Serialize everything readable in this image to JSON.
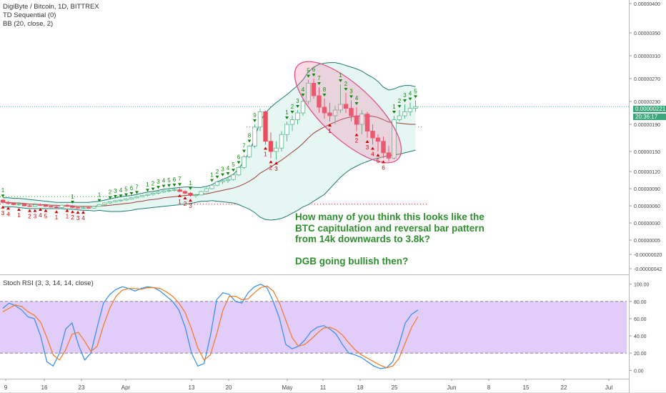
{
  "legend": {
    "symbol": "DigiByte / Bitcoin, 1D, BITTREX",
    "td": "TD Sequential (0)",
    "bb": "BB (20, close, 2)",
    "stoch": "Stoch RSI (3, 3, 14, 14, close)"
  },
  "annotation": {
    "line1": "How many of you think this looks like the",
    "line2": "BTC capitulation and reversal bar pattern",
    "line3": "from 14k downwards to 3.8k?",
    "line4": "DGB going bullish then?"
  },
  "price_tag": {
    "price": "0.00000221",
    "countdown": "20:36:17"
  },
  "colors": {
    "up": "#53b987",
    "down": "#eb4d5c",
    "td_up": "#0a8a0a",
    "td_down": "#d40000",
    "bb": "#1f7a6e",
    "basis": "#9b3b3b",
    "k": "#2f8ef0",
    "d": "#f4771f",
    "rsi_band": "#e2ccf9",
    "annotation": "#2f8f2f",
    "ellipse": "#e0508a"
  },
  "chart_data": [
    {
      "type": "candlestick",
      "title": "DigiByte / Bitcoin, 1D, BITTREX",
      "y_ticks": [
        "0.00000400",
        "0.00000350",
        "0.00000310",
        "0.00000270",
        "0.00000230",
        "0.00000190",
        "0.00000150",
        "0.00000120",
        "0.00000090",
        "0.00000060",
        "0.00000030",
        "0.00000005",
        "-0.00000020",
        "-0.00000042"
      ],
      "x_ticks": [
        "9",
        "16",
        "23",
        "Apr",
        "13",
        "20",
        "May",
        "11",
        "18",
        "25",
        "Jun",
        "8",
        "15",
        "22",
        "Jul"
      ],
      "ohlc": [
        [
          7e-07,
          7.1e-07,
          6.4e-07,
          6.6e-07
        ],
        [
          6.6e-07,
          6.8e-07,
          6.2e-07,
          6.4e-07
        ],
        [
          6.4e-07,
          6.6e-07,
          6.1e-07,
          6.2e-07
        ],
        [
          6.2e-07,
          6.5e-07,
          6e-07,
          6.3e-07
        ],
        [
          6.3e-07,
          6.4e-07,
          5.9e-07,
          6e-07
        ],
        [
          6e-07,
          6.2e-07,
          5.8e-07,
          5.9e-07
        ],
        [
          5.9e-07,
          6.3e-07,
          5.8e-07,
          6.2e-07
        ],
        [
          6.2e-07,
          6.4e-07,
          6e-07,
          6.1e-07
        ],
        [
          6.1e-07,
          6.2e-07,
          5.8e-07,
          5.9e-07
        ],
        [
          5.9e-07,
          6e-07,
          5.7e-07,
          5.8e-07
        ],
        [
          5.8e-07,
          6e-07,
          5.6e-07,
          5.7e-07
        ],
        [
          5.7e-07,
          6.2e-07,
          5.6e-07,
          6.1e-07
        ],
        [
          6.1e-07,
          6.3e-07,
          5.8e-07,
          5.9e-07
        ],
        [
          5.9e-07,
          6e-07,
          5.6e-07,
          5.7e-07
        ],
        [
          5.7e-07,
          5.8e-07,
          5.5e-07,
          5.6e-07
        ],
        [
          5.6e-07,
          5.8e-07,
          5.5e-07,
          5.7e-07
        ],
        [
          5.7e-07,
          5.9e-07,
          5.5e-07,
          5.6e-07
        ],
        [
          5.6e-07,
          6e-07,
          5.5e-07,
          5.9e-07
        ],
        [
          5.9e-07,
          6.3e-07,
          5.8e-07,
          6.2e-07
        ],
        [
          6.2e-07,
          6.6e-07,
          6.1e-07,
          6.5e-07
        ],
        [
          6.5e-07,
          6.8e-07,
          6.3e-07,
          6.7e-07
        ],
        [
          6.7e-07,
          7e-07,
          6.6e-07,
          6.9e-07
        ],
        [
          6.9e-07,
          7.1e-07,
          6.7e-07,
          7e-07
        ],
        [
          7e-07,
          7.3e-07,
          6.9e-07,
          7.2e-07
        ],
        [
          7.2e-07,
          7.5e-07,
          7.1e-07,
          7.4e-07
        ],
        [
          7.4e-07,
          7.7e-07,
          7.3e-07,
          7.6e-07
        ],
        [
          7.6e-07,
          7.9e-07,
          7.5e-07,
          7.8e-07
        ],
        [
          7.8e-07,
          8.1e-07,
          7.6e-07,
          8e-07
        ],
        [
          8e-07,
          8.3e-07,
          7.8e-07,
          8.2e-07
        ],
        [
          8.2e-07,
          8.6e-07,
          8e-07,
          8.4e-07
        ],
        [
          8.4e-07,
          8.8e-07,
          8.2e-07,
          8.6e-07
        ],
        [
          8.6e-07,
          8.9e-07,
          8.4e-07,
          8.7e-07
        ],
        [
          8.7e-07,
          9e-07,
          8.5e-07,
          8.8e-07
        ],
        [
          8.8e-07,
          9.1e-07,
          8.4e-07,
          8.5e-07
        ],
        [
          8.5e-07,
          8.7e-07,
          8e-07,
          8.2e-07
        ],
        [
          8.2e-07,
          8.4e-07,
          7.6e-07,
          7.8e-07
        ],
        [
          7.8e-07,
          8.1e-07,
          7.4e-07,
          7.9e-07
        ],
        [
          7.9e-07,
          8.6e-07,
          7.8e-07,
          8.5e-07
        ],
        [
          8.5e-07,
          9.2e-07,
          8.4e-07,
          9e-07
        ],
        [
          9e-07,
          9.8e-07,
          8.9e-07,
          9.6e-07
        ],
        [
          9.6e-07,
          1.04e-06,
          9.4e-07,
          1.02e-06
        ],
        [
          1.02e-06,
          1.08e-06,
          9.8e-07,
          1.04e-06
        ],
        [
          1.04e-06,
          1.1e-06,
          1e-06,
          1.06e-06
        ],
        [
          1.06e-06,
          1.16e-06,
          1.04e-06,
          1.14e-06
        ],
        [
          1.14e-06,
          1.28e-06,
          1.12e-06,
          1.26e-06
        ],
        [
          1.26e-06,
          1.45e-06,
          1.24e-06,
          1.42e-06
        ],
        [
          1.42e-06,
          1.6e-06,
          1.4e-06,
          1.58e-06
        ],
        [
          1.58e-06,
          1.9e-06,
          1.55e-06,
          1.86e-06
        ],
        [
          1.86e-06,
          2.18e-06,
          1.8e-06,
          2.12e-06
        ],
        [
          2.12e-06,
          2.14e-06,
          1.6e-06,
          1.65e-06
        ],
        [
          1.65e-06,
          1.78e-06,
          1.4e-06,
          1.5e-06
        ],
        [
          1.5e-06,
          1.65e-06,
          1.38e-06,
          1.55e-06
        ],
        [
          1.55e-06,
          1.8e-06,
          1.5e-06,
          1.75e-06
        ],
        [
          1.75e-06,
          1.95e-06,
          1.65e-06,
          1.9e-06
        ],
        [
          1.9e-06,
          2.05e-06,
          1.8e-06,
          1.98e-06
        ],
        [
          1.98e-06,
          2.15e-06,
          1.9e-06,
          2.1e-06
        ],
        [
          2.1e-06,
          2.35e-06,
          2.05e-06,
          2.3e-06
        ],
        [
          2.3e-06,
          2.68e-06,
          2.25e-06,
          2.62e-06
        ],
        [
          2.62e-06,
          2.7e-06,
          2.35e-06,
          2.4e-06
        ],
        [
          2.4e-06,
          2.55e-06,
          2.1e-06,
          2.2e-06
        ],
        [
          2.2e-06,
          2.35e-06,
          2e-06,
          2.1e-06
        ],
        [
          2.1e-06,
          2.28e-06,
          1.95e-06,
          2.05e-06
        ],
        [
          2.05e-06,
          2.22e-06,
          1.9e-06,
          2.15e-06
        ],
        [
          2.15e-06,
          2.6e-06,
          2.1e-06,
          2.25e-06
        ],
        [
          2.25e-06,
          2.45e-06,
          2.1e-06,
          2.18e-06
        ],
        [
          2.18e-06,
          2.32e-06,
          1.95e-06,
          2.05e-06
        ],
        [
          2.05e-06,
          2.2e-06,
          1.8e-06,
          1.9e-06
        ],
        [
          1.9e-06,
          2.15e-06,
          1.75e-06,
          2.08e-06
        ],
        [
          2.08e-06,
          2.12e-06,
          1.7e-06,
          1.8e-06
        ],
        [
          1.8e-06,
          1.9e-06,
          1.6e-06,
          1.7e-06
        ],
        [
          1.7e-06,
          1.75e-06,
          1.5e-06,
          1.65e-06
        ],
        [
          1.65e-06,
          1.72e-06,
          1.4e-06,
          1.48e-06
        ],
        [
          1.48e-06,
          1.58e-06,
          1.35e-06,
          1.4e-06
        ],
        [
          1.4e-06,
          2.05e-06,
          1.38e-06,
          1.98e-06
        ],
        [
          1.98e-06,
          2.15e-06,
          1.95e-06,
          2.05e-06
        ],
        [
          2.05e-06,
          2.25e-06,
          2e-06,
          2.12e-06
        ],
        [
          2.12e-06,
          2.28e-06,
          2.05e-06,
          2.18e-06
        ],
        [
          2.18e-06,
          2.32e-06,
          2.12e-06,
          2.21e-06
        ]
      ],
      "td_up_counts": [
        {
          "i": 0,
          "n": "1"
        },
        {
          "i": 13,
          "n": "1"
        },
        {
          "i": 18,
          "n": "1"
        },
        {
          "i": 20,
          "n": "2"
        },
        {
          "i": 21,
          "n": "3"
        },
        {
          "i": 22,
          "n": "4"
        },
        {
          "i": 23,
          "n": "5"
        },
        {
          "i": 24,
          "n": "6"
        },
        {
          "i": 25,
          "n": "7"
        },
        {
          "i": 27,
          "n": "1"
        },
        {
          "i": 28,
          "n": "2"
        },
        {
          "i": 29,
          "n": "3"
        },
        {
          "i": 30,
          "n": "4"
        },
        {
          "i": 31,
          "n": "5"
        },
        {
          "i": 32,
          "n": "6"
        },
        {
          "i": 33,
          "n": "7"
        },
        {
          "i": 35,
          "n": "1"
        },
        {
          "i": 39,
          "n": "1"
        },
        {
          "i": 40,
          "n": "2"
        },
        {
          "i": 41,
          "n": "3"
        },
        {
          "i": 42,
          "n": "4"
        },
        {
          "i": 43,
          "n": "5"
        },
        {
          "i": 44,
          "n": "6"
        },
        {
          "i": 45,
          "n": "7"
        },
        {
          "i": 46,
          "n": "8"
        },
        {
          "i": 47,
          "n": "9"
        },
        {
          "i": 53,
          "n": "1"
        },
        {
          "i": 54,
          "n": "2"
        },
        {
          "i": 55,
          "n": "3"
        },
        {
          "i": 56,
          "n": "4"
        },
        {
          "i": 57,
          "n": "5"
        },
        {
          "i": 58,
          "n": "6"
        },
        {
          "i": 59,
          "n": "7"
        },
        {
          "i": 60,
          "n": "8"
        },
        {
          "i": 63,
          "n": "1"
        },
        {
          "i": 64,
          "n": "2"
        },
        {
          "i": 65,
          "n": "3"
        },
        {
          "i": 66,
          "n": "4"
        },
        {
          "i": 73,
          "n": "1"
        },
        {
          "i": 74,
          "n": "2"
        },
        {
          "i": 75,
          "n": "3"
        },
        {
          "i": 76,
          "n": "4"
        },
        {
          "i": 77,
          "n": "5"
        }
      ],
      "td_down_counts": [
        {
          "i": 0,
          "n": "3"
        },
        {
          "i": 1,
          "n": "4"
        },
        {
          "i": 3,
          "n": "1"
        },
        {
          "i": 5,
          "n": "2"
        },
        {
          "i": 6,
          "n": "3"
        },
        {
          "i": 7,
          "n": "4"
        },
        {
          "i": 8,
          "n": "5"
        },
        {
          "i": 10,
          "n": "1"
        },
        {
          "i": 12,
          "n": "1"
        },
        {
          "i": 13,
          "n": "2"
        },
        {
          "i": 14,
          "n": "3"
        },
        {
          "i": 15,
          "n": "4"
        },
        {
          "i": 33,
          "n": "1"
        },
        {
          "i": 34,
          "n": "2"
        },
        {
          "i": 35,
          "n": "3"
        },
        {
          "i": 49,
          "n": "1"
        },
        {
          "i": 50,
          "n": "2"
        },
        {
          "i": 51,
          "n": "3"
        },
        {
          "i": 61,
          "n": "1"
        },
        {
          "i": 66,
          "n": "2"
        },
        {
          "i": 68,
          "n": "3"
        },
        {
          "i": 69,
          "n": "4"
        },
        {
          "i": 70,
          "n": "5"
        },
        {
          "i": 71,
          "n": "6"
        }
      ],
      "bb_upper": [
        7.4e-07,
        7.4e-07,
        7.3e-07,
        7.3e-07,
        7.2e-07,
        7.1e-07,
        7e-07,
        6.9e-07,
        6.8e-07,
        6.7e-07,
        6.6e-07,
        6.6e-07,
        6.6e-07,
        6.6e-07,
        6.6e-07,
        6.6e-07,
        6.6e-07,
        6.7e-07,
        6.8e-07,
        7e-07,
        7.2e-07,
        7.4e-07,
        7.6e-07,
        7.7e-07,
        7.8e-07,
        8e-07,
        8.2e-07,
        8.4e-07,
        8.5e-07,
        8.7e-07,
        8.9e-07,
        9e-07,
        9.1e-07,
        9.2e-07,
        9.3e-07,
        9.3e-07,
        9.2e-07,
        9.2e-07,
        9.4e-07,
        9.7e-07,
        1.02e-06,
        1.06e-06,
        1.1e-06,
        1.15e-06,
        1.24e-06,
        1.36e-06,
        1.5e-06,
        1.7e-06,
        1.95e-06,
        2.1e-06,
        2.2e-06,
        2.28e-06,
        2.35e-06,
        2.42e-06,
        2.5e-06,
        2.58e-06,
        2.68e-06,
        2.82e-06,
        2.9e-06,
        2.95e-06,
        2.97e-06,
        2.98e-06,
        2.98e-06,
        2.96e-06,
        2.93e-06,
        2.9e-06,
        2.87e-06,
        2.83e-06,
        2.77e-06,
        2.72e-06,
        2.65e-06,
        2.55e-06,
        2.5e-06,
        2.52e-06,
        2.56e-06,
        2.58e-06,
        2.58e-06,
        2.56e-06
      ],
      "bb_basis": [
        6.6e-07,
        6.6e-07,
        6.5e-07,
        6.5e-07,
        6.4e-07,
        6.3e-07,
        6.3e-07,
        6.2e-07,
        6.2e-07,
        6.1e-07,
        6.1e-07,
        6e-07,
        6e-07,
        6e-07,
        5.9e-07,
        5.9e-07,
        5.9e-07,
        5.9e-07,
        6e-07,
        6e-07,
        6.1e-07,
        6.2e-07,
        6.3e-07,
        6.4e-07,
        6.5e-07,
        6.7e-07,
        6.8e-07,
        7e-07,
        7.1e-07,
        7.2e-07,
        7.4e-07,
        7.5e-07,
        7.6e-07,
        7.7e-07,
        7.8e-07,
        7.9e-07,
        7.9e-07,
        8e-07,
        8.1e-07,
        8.3e-07,
        8.5e-07,
        8.7e-07,
        8.9e-07,
        9.1e-07,
        9.4e-07,
        9.8e-07,
        1.03e-06,
        1.09e-06,
        1.17e-06,
        1.22e-06,
        1.27e-06,
        1.32e-06,
        1.37e-06,
        1.43e-06,
        1.49e-06,
        1.55e-06,
        1.62e-06,
        1.7e-06,
        1.77e-06,
        1.82e-06,
        1.86e-06,
        1.9e-06,
        1.94e-06,
        1.98e-06,
        2.01e-06,
        2.03e-06,
        2.04e-06,
        2.05e-06,
        2.05e-06,
        2.04e-06,
        2.02e-06,
        1.98e-06,
        1.94e-06,
        1.93e-06,
        1.92e-06,
        1.91e-06,
        1.9e-06,
        1.9e-06
      ],
      "bb_lower": [
        5.8e-07,
        5.8e-07,
        5.8e-07,
        5.7e-07,
        5.6e-07,
        5.5e-07,
        5.5e-07,
        5.5e-07,
        5.5e-07,
        5.5e-07,
        5.5e-07,
        5.5e-07,
        5.4e-07,
        5.4e-07,
        5.3e-07,
        5.2e-07,
        5.2e-07,
        5.1e-07,
        5.2e-07,
        5.1e-07,
        5e-07,
        5e-07,
        5e-07,
        5.1e-07,
        5.2e-07,
        5.4e-07,
        5.5e-07,
        5.6e-07,
        5.7e-07,
        5.8e-07,
        5.9e-07,
        6e-07,
        6.1e-07,
        6.2e-07,
        6.3e-07,
        6.4e-07,
        6.6e-07,
        6.8e-07,
        6.8e-07,
        6.9e-07,
        6.8e-07,
        6.7e-07,
        6.6e-07,
        6.5e-07,
        6.2e-07,
        5.8e-07,
        5.4e-07,
        4.8e-07,
        4e-07,
        3.6e-07,
        3.5e-07,
        3.6e-07,
        3.8e-07,
        4.2e-07,
        4.7e-07,
        5.2e-07,
        5.8e-07,
        6.2e-07,
        6.8e-07,
        7.4e-07,
        8e-07,
        9e-07,
        1e-06,
        1.1e-06,
        1.18e-06,
        1.24e-06,
        1.28e-06,
        1.32e-06,
        1.35e-06,
        1.38e-06,
        1.4e-06,
        1.42e-06,
        1.44e-06,
        1.45e-06,
        1.46e-06,
        1.48e-06,
        1.5e-06,
        1.52e-06
      ]
    },
    {
      "type": "line",
      "title": "Stoch RSI (3, 3, 14, 14, close)",
      "y_ticks": [
        "100.00",
        "80.00",
        "60.00",
        "40.00",
        "20.00",
        "0.00"
      ],
      "ylim": [
        -8,
        108
      ],
      "band": [
        20,
        80
      ],
      "series": [
        {
          "values": [
            72,
            78,
            75,
            70,
            62,
            60,
            40,
            10,
            5,
            20,
            48,
            55,
            30,
            12,
            20,
            50,
            78,
            88,
            94,
            97,
            95,
            92,
            95,
            97,
            96,
            92,
            86,
            80,
            70,
            50,
            20,
            5,
            8,
            40,
            82,
            90,
            88,
            80,
            78,
            90,
            97,
            100,
            96,
            80,
            60,
            30,
            25,
            28,
            35,
            45,
            50,
            52,
            48,
            42,
            30,
            20,
            18,
            15,
            10,
            5,
            2,
            3,
            10,
            30,
            55,
            65,
            70
          ]
        },
        {
          "values": [
            68,
            72,
            76,
            74,
            68,
            64,
            56,
            38,
            18,
            12,
            24,
            42,
            44,
            34,
            22,
            28,
            52,
            72,
            86,
            93,
            95,
            95,
            94,
            96,
            96,
            95,
            91,
            86,
            78,
            67,
            48,
            26,
            12,
            18,
            42,
            70,
            86,
            86,
            82,
            83,
            90,
            96,
            98,
            92,
            78,
            58,
            38,
            28,
            30,
            36,
            43,
            49,
            50,
            47,
            41,
            32,
            24,
            18,
            14,
            10,
            6,
            3,
            5,
            14,
            32,
            50,
            62
          ]
        }
      ]
    }
  ]
}
